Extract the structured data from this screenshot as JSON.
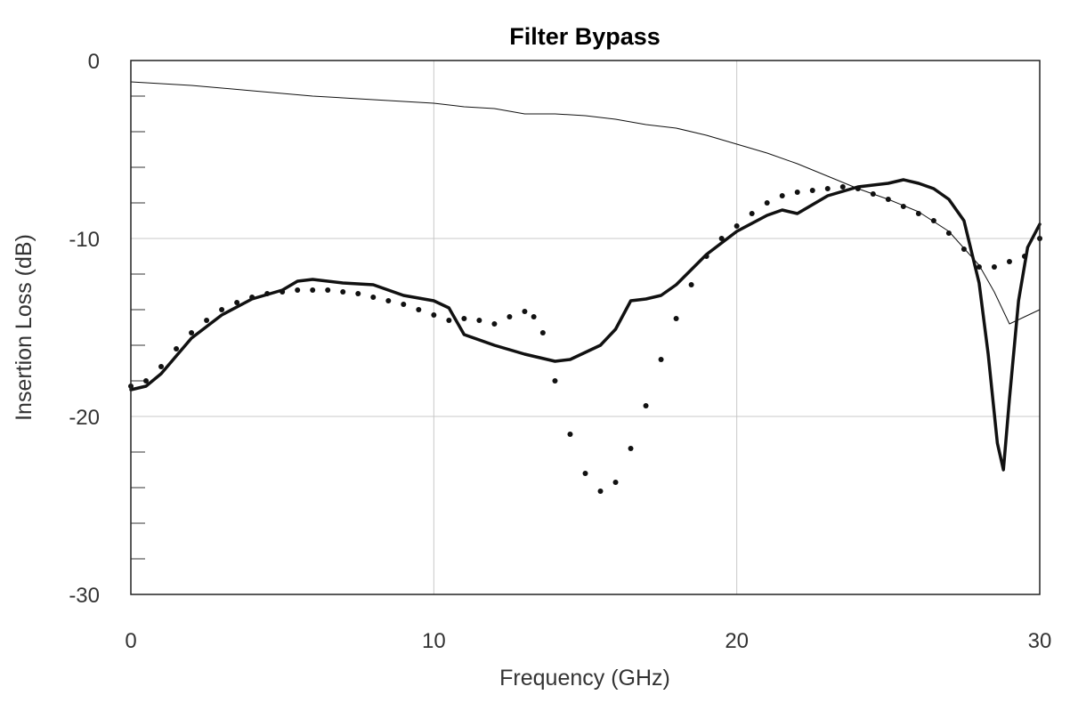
{
  "chart_data": {
    "type": "line",
    "title": "Filter Bypass",
    "xlabel": "Frequency (GHz)",
    "ylabel": "Insertion Loss (dB)",
    "xlim": [
      0,
      30
    ],
    "ylim": [
      -30,
      0
    ],
    "xticks": [
      0,
      10,
      20,
      30
    ],
    "yticks": [
      0,
      -10,
      -20,
      -30
    ],
    "y_minor_step": 2,
    "grid": true,
    "series": [
      {
        "name": "thin",
        "style": "thin-line",
        "x": [
          0,
          2,
          4,
          6,
          8,
          10,
          11,
          12,
          13,
          14,
          15,
          16,
          17,
          18,
          19,
          20,
          21,
          22,
          23,
          24,
          25,
          26,
          27,
          28,
          28.5,
          29,
          29.5,
          30
        ],
        "y": [
          -1.2,
          -1.4,
          -1.7,
          -2.0,
          -2.2,
          -2.4,
          -2.6,
          -2.7,
          -3.0,
          -3.0,
          -3.1,
          -3.3,
          -3.6,
          -3.8,
          -4.2,
          -4.7,
          -5.2,
          -5.8,
          -6.5,
          -7.2,
          -7.8,
          -8.5,
          -9.6,
          -11.5,
          -13.0,
          -14.8,
          -14.4,
          -14.0
        ]
      },
      {
        "name": "thick",
        "style": "thick-line",
        "x": [
          0,
          0.5,
          1,
          2,
          3,
          4,
          5,
          5.5,
          6,
          7,
          8,
          9,
          10,
          10.5,
          11,
          12,
          13,
          14,
          14.5,
          15,
          15.5,
          16,
          16.5,
          17,
          17.5,
          18,
          19,
          20,
          21,
          21.5,
          22,
          23,
          24,
          25,
          25.5,
          26,
          26.5,
          27,
          27.5,
          28,
          28.3,
          28.6,
          28.8,
          29,
          29.3,
          29.6,
          30
        ],
        "y": [
          -18.5,
          -18.3,
          -17.6,
          -15.6,
          -14.3,
          -13.4,
          -12.9,
          -12.4,
          -12.3,
          -12.5,
          -12.6,
          -13.2,
          -13.5,
          -13.9,
          -15.4,
          -16.0,
          -16.5,
          -16.9,
          -16.8,
          -16.4,
          -16.0,
          -15.1,
          -13.5,
          -13.4,
          -13.2,
          -12.6,
          -10.9,
          -9.6,
          -8.7,
          -8.4,
          -8.6,
          -7.6,
          -7.1,
          -6.9,
          -6.7,
          -6.9,
          -7.2,
          -7.8,
          -9.0,
          -12.5,
          -16.5,
          -21.5,
          -23.0,
          -19.0,
          -13.5,
          -10.5,
          -9.2
        ]
      },
      {
        "name": "dotted",
        "style": "dots",
        "x": [
          0,
          0.5,
          1,
          1.5,
          2,
          2.5,
          3,
          3.5,
          4,
          4.5,
          5,
          5.5,
          6,
          6.5,
          7,
          7.5,
          8,
          8.5,
          9,
          9.5,
          10,
          10.5,
          11,
          11.5,
          12,
          12.5,
          13,
          13.3,
          13.6,
          14,
          14.5,
          15,
          15.5,
          16,
          16.5,
          17,
          17.5,
          18,
          18.5,
          19,
          19.5,
          20,
          20.5,
          21,
          21.5,
          22,
          22.5,
          23,
          23.5,
          24,
          24.5,
          25,
          25.5,
          26,
          26.5,
          27,
          27.5,
          28,
          28.5,
          29,
          29.5,
          30
        ],
        "y": [
          -18.3,
          -18.0,
          -17.2,
          -16.2,
          -15.3,
          -14.6,
          -14.0,
          -13.6,
          -13.3,
          -13.1,
          -13.0,
          -12.9,
          -12.9,
          -12.9,
          -13.0,
          -13.1,
          -13.3,
          -13.5,
          -13.7,
          -14.0,
          -14.3,
          -14.6,
          -14.5,
          -14.6,
          -14.8,
          -14.4,
          -14.1,
          -14.4,
          -15.3,
          -18.0,
          -21.0,
          -23.2,
          -24.2,
          -23.7,
          -21.8,
          -19.4,
          -16.8,
          -14.5,
          -12.6,
          -11.0,
          -10.0,
          -9.3,
          -8.6,
          -8.0,
          -7.6,
          -7.4,
          -7.3,
          -7.2,
          -7.1,
          -7.2,
          -7.5,
          -7.8,
          -8.2,
          -8.6,
          -9.0,
          -9.7,
          -10.6,
          -11.6,
          -11.6,
          -11.3,
          -11.0,
          -10.0
        ]
      }
    ]
  }
}
